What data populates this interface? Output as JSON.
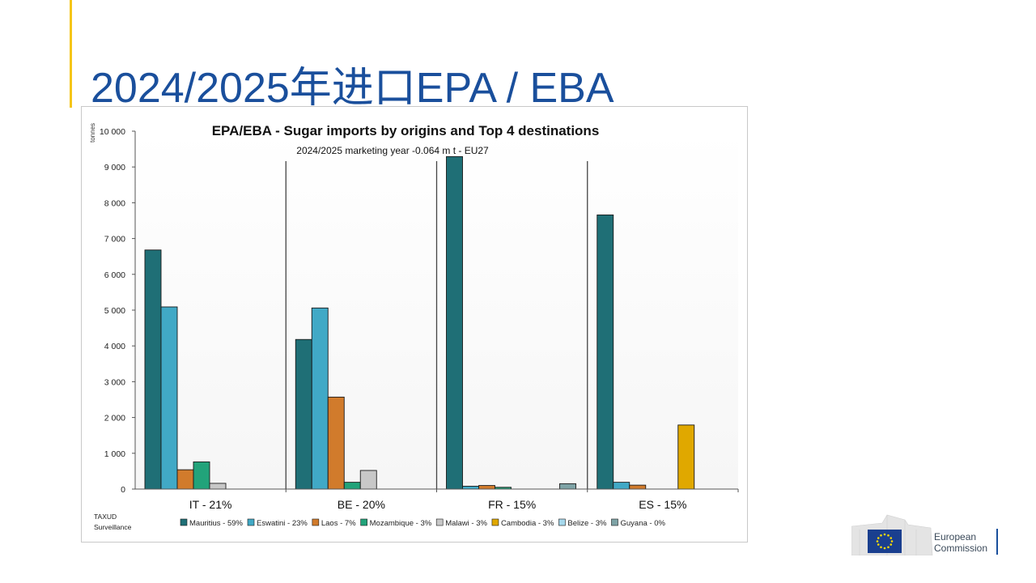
{
  "slide": {
    "title": "2024/2025年进口EPA / EBA"
  },
  "logo": {
    "line1": "European",
    "line2": "Commission"
  },
  "colors": {
    "title": "#1a4f9c",
    "accent": "#f5c518"
  },
  "chart_data": {
    "type": "bar",
    "title": "EPA/EBA - Sugar imports by origins and Top 4 destinations",
    "subtitle": "2024/2025 marketing year -0.064 m t - EU27",
    "ylabel": "tonnes",
    "ylim": [
      0,
      10000
    ],
    "yticks": [
      0,
      1000,
      2000,
      3000,
      4000,
      5000,
      6000,
      7000,
      8000,
      9000,
      10000
    ],
    "ytick_labels": [
      "0",
      "1 000",
      "2 000",
      "3 000",
      "4 000",
      "5 000",
      "6 000",
      "7 000",
      "8 000",
      "9 000",
      "10 000"
    ],
    "categories": [
      "IT - 21%",
      "BE - 20%",
      "FR - 15%",
      "ES - 15%"
    ],
    "source": [
      "TAXUD",
      "Surveillance"
    ],
    "legend_position": "bottom",
    "series": [
      {
        "name": "Mauritius - 59%",
        "color": "#1f6f76",
        "values": [
          6680,
          4180,
          9290,
          7660
        ]
      },
      {
        "name": "Eswatini - 23%",
        "color": "#41a9c6",
        "values": [
          5090,
          5060,
          80,
          190
        ]
      },
      {
        "name": "Laos - 7%",
        "color": "#d17b2c",
        "values": [
          540,
          2570,
          100,
          110
        ]
      },
      {
        "name": "Mozambique - 3%",
        "color": "#22a37a",
        "values": [
          760,
          190,
          50,
          0
        ]
      },
      {
        "name": "Malawi - 3%",
        "color": "#c8c8c8",
        "values": [
          160,
          520,
          0,
          0
        ]
      },
      {
        "name": "Cambodia - 3%",
        "color": "#e0a800",
        "values": [
          0,
          0,
          0,
          1790
        ]
      },
      {
        "name": "Belize - 3%",
        "color": "#a6d8ec",
        "values": [
          0,
          0,
          0,
          0
        ]
      },
      {
        "name": "Guyana - 0%",
        "color": "#7ea3a6",
        "values": [
          0,
          0,
          150,
          0
        ]
      }
    ]
  }
}
